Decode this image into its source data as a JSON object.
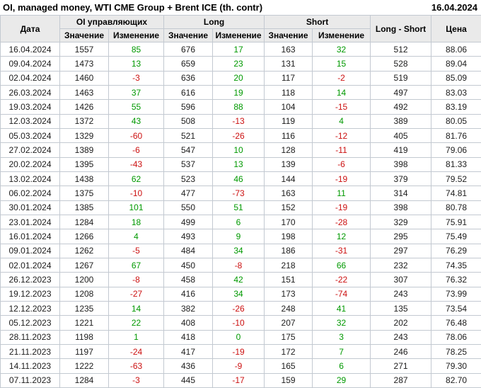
{
  "title": "OI, managed money, WTI CME Group + Brent ICE (th. contr)",
  "report_date": "16.04.2024",
  "colors": {
    "positive_change": "#009900",
    "negative_change": "#cc1111",
    "header_background": "#eaeaea",
    "grid_border": "#c3c9d1"
  },
  "table": {
    "headers": {
      "date": "Дата",
      "oi_group": "OI управляющих",
      "long_group": "Long",
      "short_group": "Short",
      "value": "Значение",
      "change": "Изменение",
      "long_short": "Long - Short",
      "price": "Цена"
    },
    "column_names": [
      "date",
      "oi_value",
      "oi_change",
      "long_value",
      "long_change",
      "short_value",
      "short_change",
      "long_short",
      "price"
    ],
    "rows": [
      [
        "16.04.2024",
        "1557",
        "85",
        "676",
        "17",
        "163",
        "32",
        "512",
        "88.06"
      ],
      [
        "09.04.2024",
        "1473",
        "13",
        "659",
        "23",
        "131",
        "15",
        "528",
        "89.04"
      ],
      [
        "02.04.2024",
        "1460",
        "-3",
        "636",
        "20",
        "117",
        "-2",
        "519",
        "85.09"
      ],
      [
        "26.03.2024",
        "1463",
        "37",
        "616",
        "19",
        "118",
        "14",
        "497",
        "83.03"
      ],
      [
        "19.03.2024",
        "1426",
        "55",
        "596",
        "88",
        "104",
        "-15",
        "492",
        "83.19"
      ],
      [
        "12.03.2024",
        "1372",
        "43",
        "508",
        "-13",
        "119",
        "4",
        "389",
        "80.05"
      ],
      [
        "05.03.2024",
        "1329",
        "-60",
        "521",
        "-26",
        "116",
        "-12",
        "405",
        "81.76"
      ],
      [
        "27.02.2024",
        "1389",
        "-6",
        "547",
        "10",
        "128",
        "-11",
        "419",
        "79.06"
      ],
      [
        "20.02.2024",
        "1395",
        "-43",
        "537",
        "13",
        "139",
        "-6",
        "398",
        "81.33"
      ],
      [
        "13.02.2024",
        "1438",
        "62",
        "523",
        "46",
        "144",
        "-19",
        "379",
        "79.52"
      ],
      [
        "06.02.2024",
        "1375",
        "-10",
        "477",
        "-73",
        "163",
        "11",
        "314",
        "74.81"
      ],
      [
        "30.01.2024",
        "1385",
        "101",
        "550",
        "51",
        "152",
        "-19",
        "398",
        "80.78"
      ],
      [
        "23.01.2024",
        "1284",
        "18",
        "499",
        "6",
        "170",
        "-28",
        "329",
        "75.91"
      ],
      [
        "16.01.2024",
        "1266",
        "4",
        "493",
        "9",
        "198",
        "12",
        "295",
        "75.49"
      ],
      [
        "09.01.2024",
        "1262",
        "-5",
        "484",
        "34",
        "186",
        "-31",
        "297",
        "76.29"
      ],
      [
        "02.01.2024",
        "1267",
        "67",
        "450",
        "-8",
        "218",
        "66",
        "232",
        "74.35"
      ],
      [
        "26.12.2023",
        "1200",
        "-8",
        "458",
        "42",
        "151",
        "-22",
        "307",
        "76.32"
      ],
      [
        "19.12.2023",
        "1208",
        "-27",
        "416",
        "34",
        "173",
        "-74",
        "243",
        "73.99"
      ],
      [
        "12.12.2023",
        "1235",
        "14",
        "382",
        "-26",
        "248",
        "41",
        "135",
        "73.54"
      ],
      [
        "05.12.2023",
        "1221",
        "22",
        "408",
        "-10",
        "207",
        "32",
        "202",
        "76.48"
      ],
      [
        "28.11.2023",
        "1198",
        "1",
        "418",
        "0",
        "175",
        "3",
        "243",
        "78.06"
      ],
      [
        "21.11.2023",
        "1197",
        "-24",
        "417",
        "-19",
        "172",
        "7",
        "246",
        "78.25"
      ],
      [
        "14.11.2023",
        "1222",
        "-63",
        "436",
        "-9",
        "165",
        "6",
        "271",
        "79.30"
      ],
      [
        "07.11.2023",
        "1284",
        "-3",
        "445",
        "-17",
        "159",
        "29",
        "287",
        "82.70"
      ]
    ]
  }
}
